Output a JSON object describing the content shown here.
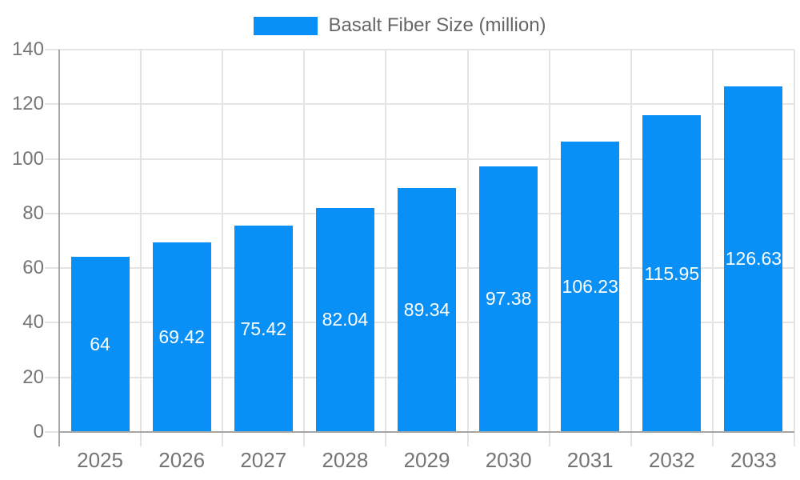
{
  "legend": {
    "label": "Basalt Fiber Size (million)"
  },
  "chart_data": {
    "type": "bar",
    "title": "Basalt Fiber Size (million)",
    "categories": [
      "2025",
      "2026",
      "2027",
      "2028",
      "2029",
      "2030",
      "2031",
      "2032",
      "2033"
    ],
    "series": [
      {
        "name": "Basalt Fiber Size (million)",
        "values": [
          64,
          69.42,
          75.42,
          82.04,
          89.34,
          97.38,
          106.23,
          115.95,
          126.63
        ]
      }
    ],
    "value_labels": [
      "64",
      "69.42",
      "75.42",
      "82.04",
      "89.34",
      "97.38",
      "106.23",
      "115.95",
      "126.63"
    ],
    "xlabel": "",
    "ylabel": "",
    "ylim": [
      0,
      140
    ],
    "yticks": [
      0,
      20,
      40,
      60,
      80,
      100,
      120,
      140
    ],
    "grid": true,
    "legend_position": "top",
    "colors": {
      "bar": "#0990f7",
      "grid": "#e4e4e4",
      "axis": "#a6a6a6",
      "tick_label": "#757575",
      "legend_text": "#666666",
      "value_label": "#ffffff",
      "background": "#ffffff"
    }
  }
}
